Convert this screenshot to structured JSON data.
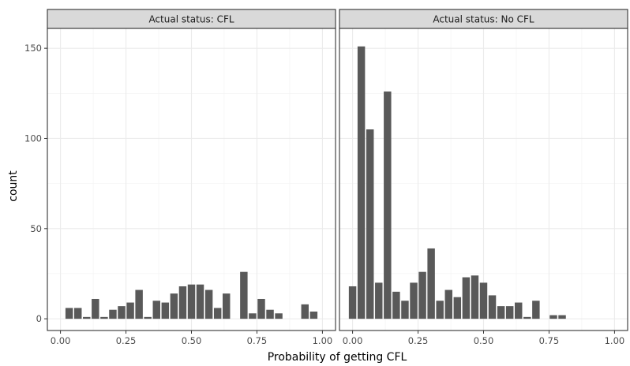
{
  "chart_data": {
    "type": "bar",
    "xlabel": "Probability of getting CFL",
    "ylabel": "count",
    "xlim": [
      -0.05,
      1.05
    ],
    "ylim": [
      -6.5,
      161
    ],
    "x_ticks": [
      0.0,
      0.25,
      0.5,
      0.75,
      1.0
    ],
    "x_tick_labels": [
      "0.00",
      "0.25",
      "0.50",
      "0.75",
      "1.00"
    ],
    "y_ticks": [
      0,
      50,
      100,
      150
    ],
    "y_tick_labels": [
      "0",
      "50",
      "100",
      "150"
    ],
    "grid": true,
    "bin_width": 0.0333,
    "bar_fill": "#595959",
    "panels": [
      {
        "strip": "Actual status:  CFL",
        "x": [
          0.0333,
          0.0667,
          0.1,
          0.1333,
          0.1667,
          0.2,
          0.2333,
          0.2667,
          0.3,
          0.3333,
          0.3667,
          0.4,
          0.4333,
          0.4667,
          0.5,
          0.5333,
          0.5667,
          0.6,
          0.6333,
          0.6667,
          0.7,
          0.7333,
          0.7667,
          0.8,
          0.8333,
          0.8667,
          0.9,
          0.9333,
          0.9667
        ],
        "values": [
          6,
          6,
          1,
          11,
          1,
          5,
          7,
          9,
          16,
          1,
          10,
          9,
          14,
          18,
          19,
          19,
          16,
          6,
          14,
          0,
          26,
          3,
          11,
          5,
          3,
          0,
          0,
          8,
          4
        ]
      },
      {
        "strip": "Actual status:  No CFL",
        "x": [
          0.0,
          0.0333,
          0.0667,
          0.1,
          0.1333,
          0.1667,
          0.2,
          0.2333,
          0.2667,
          0.3,
          0.3333,
          0.3667,
          0.4,
          0.4333,
          0.4667,
          0.5,
          0.5333,
          0.5667,
          0.6,
          0.6333,
          0.6667,
          0.7,
          0.7333,
          0.7667,
          0.8
        ],
        "values": [
          18,
          151,
          105,
          20,
          126,
          15,
          10,
          20,
          26,
          39,
          10,
          16,
          12,
          23,
          24,
          20,
          13,
          7,
          7,
          9,
          1,
          10,
          0,
          2,
          2
        ]
      }
    ]
  }
}
